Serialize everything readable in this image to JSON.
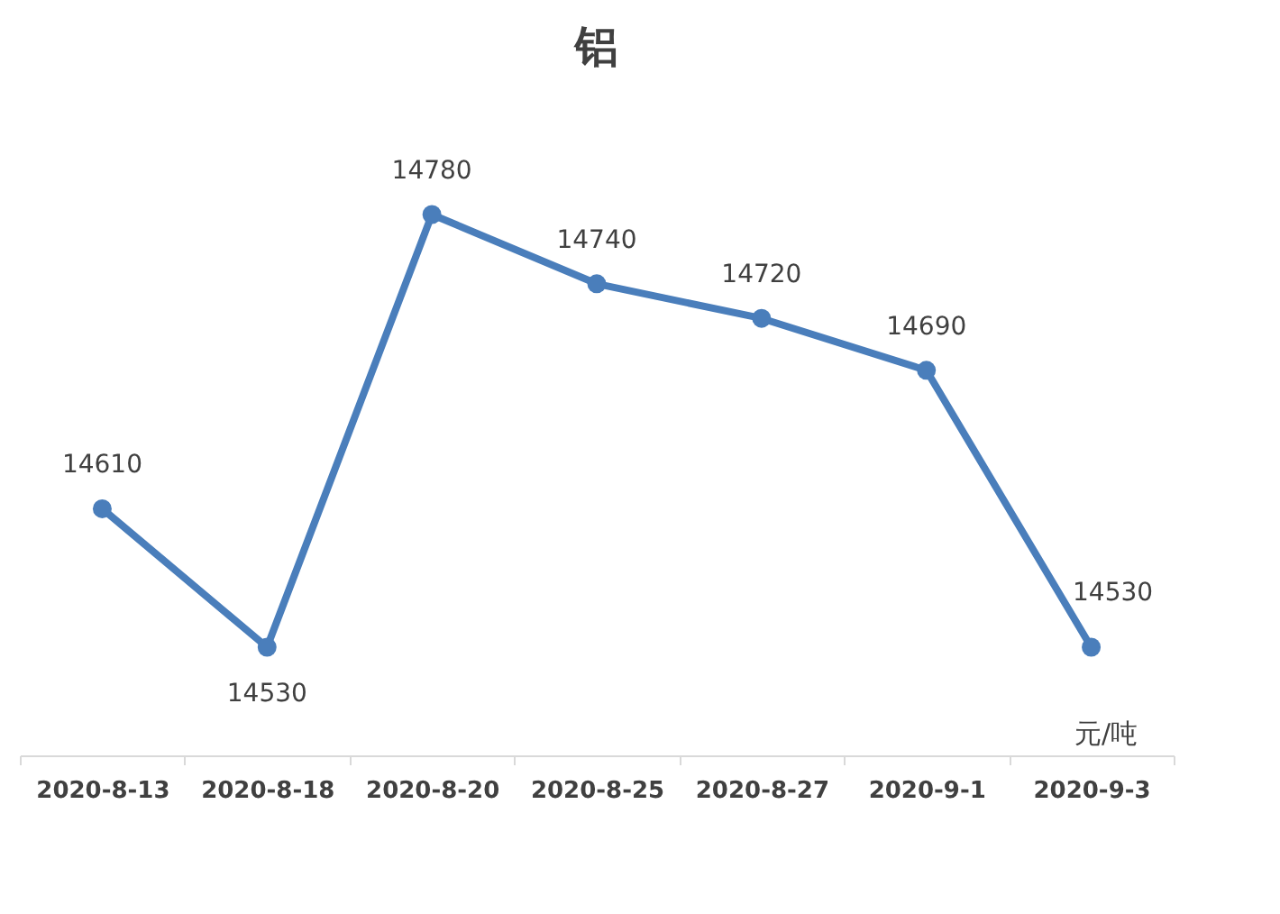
{
  "chart_data": {
    "type": "line",
    "title": "铝",
    "categories": [
      "2020-8-13",
      "2020-8-18",
      "2020-8-20",
      "2020-8-25",
      "2020-8-27",
      "2020-9-1",
      "2020-9-3"
    ],
    "series": [
      {
        "color": "#4a7ebb",
        "values": [
          14610,
          14530,
          14780,
          14740,
          14720,
          14690,
          14530
        ]
      }
    ],
    "data_labels": true,
    "marker": "circle",
    "line_style": "solid",
    "grid": false,
    "tick_labels": "x",
    "annotations": [
      "元/吨"
    ]
  }
}
